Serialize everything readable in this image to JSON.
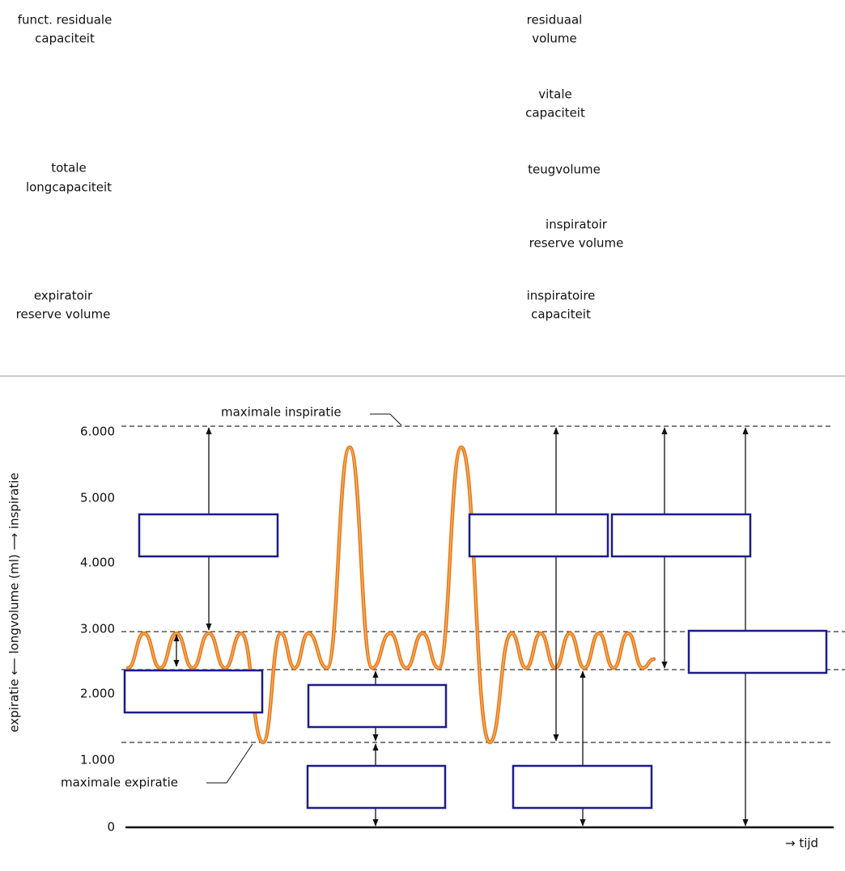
{
  "word_bank": [
    {
      "lines": [
        "funct. residuale",
        "capaciteit"
      ]
    },
    {
      "lines": [
        "totale",
        "longcapaciteit"
      ]
    },
    {
      "lines": [
        "expiratoir",
        "reserve volume"
      ]
    },
    {
      "lines": [
        "residuaal",
        "volume"
      ]
    },
    {
      "lines": [
        "vitale",
        "capaciteit"
      ]
    },
    {
      "lines": [
        "teugvolume"
      ]
    },
    {
      "lines": [
        "inspiratoir",
        "reserve volume"
      ]
    },
    {
      "lines": [
        "inspiratoire",
        "capaciteit"
      ]
    }
  ],
  "diagram": {
    "y_axis_label": "expiratie ⟵ longvolume (ml) ⟶ inspiratie",
    "y_ticks": [
      "6.000",
      "5.000",
      "4.000",
      "3.000",
      "2.000",
      "1.000",
      "0"
    ],
    "annotations": {
      "max_inspiration": "maximale inspiratie",
      "max_expiration": "maximale expiratie",
      "time": "→ tijd"
    }
  }
}
